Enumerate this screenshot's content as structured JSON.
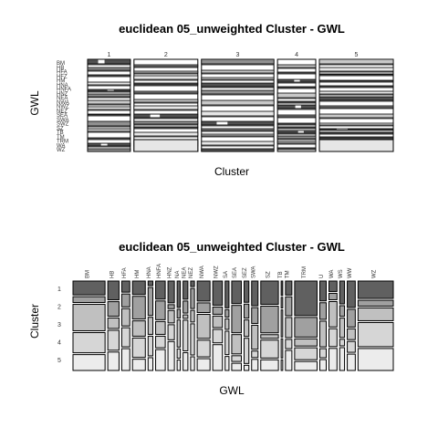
{
  "chart_data": [
    {
      "type": "mosaic",
      "title": "euclidean 05_unweighted Cluster - GWL",
      "xlabel": "Cluster",
      "ylabel": "GWL",
      "x_categories": [
        "1",
        "2",
        "3",
        "4",
        "5"
      ],
      "x_widths": [
        0.17,
        0.254,
        0.288,
        0.152,
        0.294
      ],
      "y_tick_labels": [
        "BM",
        "HB",
        "HFA",
        "HFZ",
        "HM",
        "HNA",
        "HNFA",
        "HNZ",
        "NEA",
        "NWA",
        "NWZ",
        "NEZ",
        "SEA",
        "SWA",
        "SWZ",
        "SZ",
        "TB",
        "TM",
        "TRM",
        "WA",
        "WZ"
      ]
    },
    {
      "type": "mosaic",
      "title": "euclidean 05_unweighted Cluster - GWL",
      "xlabel": "GWL",
      "ylabel": "Cluster",
      "y_categories": [
        "1",
        "2",
        "3",
        "4",
        "5"
      ],
      "x_tick_labels": [
        "BM",
        "HB",
        "HFA",
        "HM",
        "HNA",
        "HNFA",
        "HNZ",
        "NA",
        "NEA",
        "NEZ",
        "NWA",
        "NWZ",
        "SA",
        "SEA",
        "SEZ",
        "SWA",
        "SZ",
        "TB",
        "TM",
        "TRM",
        "U",
        "WA",
        "WS",
        "WW",
        "WZ"
      ]
    }
  ]
}
